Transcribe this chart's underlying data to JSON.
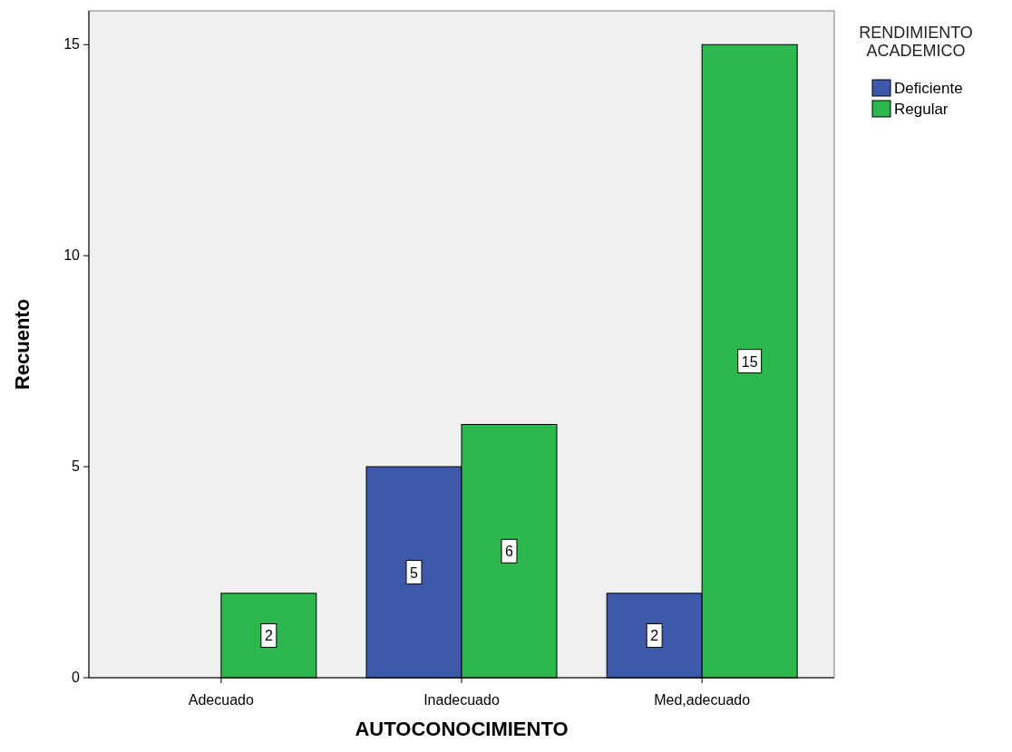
{
  "chart_data": {
    "type": "bar",
    "xlabel": "AUTOCONOCIMIENTO",
    "ylabel": "Recuento",
    "legend_title": "RENDIMIENTO ACADEMICO",
    "categories": [
      "Adecuado",
      "Inadecuado",
      "Med,adecuado"
    ],
    "series": [
      {
        "name": "Deficiente",
        "color": "#3e58ac",
        "values": [
          null,
          5,
          2
        ]
      },
      {
        "name": "Regular",
        "color": "#2db84d",
        "values": [
          2,
          6,
          15
        ]
      }
    ],
    "ylim": [
      0,
      15.8
    ],
    "yticks": [
      0,
      5,
      10,
      15
    ],
    "data_labels": true,
    "legend": "top right",
    "grid": false
  }
}
